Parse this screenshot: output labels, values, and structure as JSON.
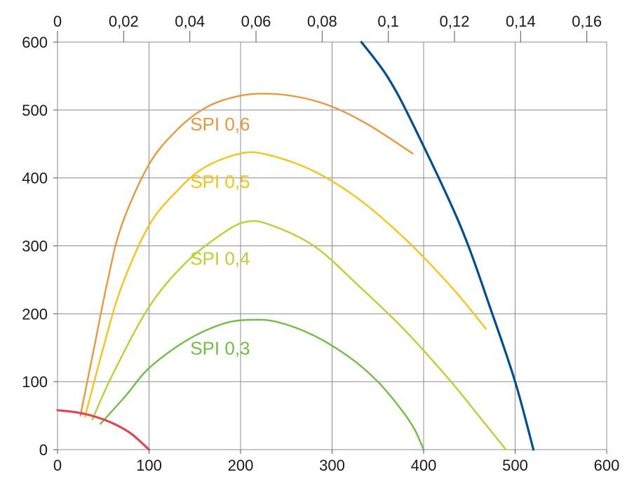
{
  "chart_data": {
    "type": "line",
    "title": "",
    "xlabel": "",
    "ylabel": "",
    "xlim": [
      0,
      600
    ],
    "ylim": [
      0,
      600
    ],
    "x2lim": [
      0,
      0.166
    ],
    "grid": true,
    "x_ticks": [
      "0",
      "100",
      "200",
      "300",
      "400",
      "500",
      "600"
    ],
    "y_ticks": [
      "0",
      "100",
      "200",
      "300",
      "400",
      "500",
      "600"
    ],
    "x2_ticks": [
      "0",
      "0,02",
      "0,04",
      "0,06",
      "0,08",
      "0,1",
      "0,12",
      "0,14",
      "0,16"
    ],
    "series": [
      {
        "name": "SPI 0,6",
        "color": "#E8993F",
        "points": [
          [
            25,
            50
          ],
          [
            40,
            150
          ],
          [
            55,
            250
          ],
          [
            70,
            330
          ],
          [
            100,
            420
          ],
          [
            130,
            470
          ],
          [
            160,
            502
          ],
          [
            190,
            518
          ],
          [
            220,
            524
          ],
          [
            260,
            520
          ],
          [
            300,
            505
          ],
          [
            340,
            478
          ],
          [
            388,
            436
          ]
        ]
      },
      {
        "name": "SPI 0,5",
        "color": "#F5C518",
        "points": [
          [
            30,
            48
          ],
          [
            50,
            150
          ],
          [
            70,
            240
          ],
          [
            100,
            330
          ],
          [
            130,
            380
          ],
          [
            160,
            415
          ],
          [
            200,
            436
          ],
          [
            230,
            434
          ],
          [
            280,
            410
          ],
          [
            330,
            368
          ],
          [
            380,
            310
          ],
          [
            430,
            240
          ],
          [
            468,
            178
          ]
        ]
      },
      {
        "name": "SPI 0,4",
        "color": "#B5D334",
        "points": [
          [
            38,
            44
          ],
          [
            60,
            110
          ],
          [
            100,
            210
          ],
          [
            140,
            275
          ],
          [
            180,
            318
          ],
          [
            205,
            335
          ],
          [
            230,
            332
          ],
          [
            280,
            300
          ],
          [
            330,
            240
          ],
          [
            380,
            175
          ],
          [
            430,
            100
          ],
          [
            460,
            50
          ],
          [
            490,
            0
          ]
        ]
      },
      {
        "name": "SPI 0,3",
        "color": "#72BE44",
        "points": [
          [
            47,
            38
          ],
          [
            75,
            80
          ],
          [
            100,
            120
          ],
          [
            140,
            160
          ],
          [
            180,
            185
          ],
          [
            210,
            191
          ],
          [
            240,
            188
          ],
          [
            280,
            168
          ],
          [
            320,
            135
          ],
          [
            350,
            100
          ],
          [
            375,
            60
          ],
          [
            390,
            30
          ],
          [
            400,
            0
          ]
        ]
      },
      {
        "name": "",
        "color": "#E04656",
        "points": [
          [
            0,
            58
          ],
          [
            20,
            55
          ],
          [
            40,
            49
          ],
          [
            60,
            39
          ],
          [
            80,
            24
          ],
          [
            100,
            0
          ]
        ]
      },
      {
        "name": "",
        "color": "#004F91",
        "points": [
          [
            332,
            600
          ],
          [
            360,
            550
          ],
          [
            388,
            480
          ],
          [
            440,
            330
          ],
          [
            475,
            200
          ],
          [
            500,
            100
          ],
          [
            520,
            0
          ]
        ]
      }
    ],
    "annotations": [
      {
        "text": "SPI 0,6",
        "x": 145,
        "y": 470,
        "color": "#E8993F"
      },
      {
        "text": "SPI 0,5",
        "x": 145,
        "y": 385,
        "color": "#F5C518"
      },
      {
        "text": "SPI 0,4",
        "x": 145,
        "y": 272,
        "color": "#B5D334"
      },
      {
        "text": "SPI 0,3",
        "x": 145,
        "y": 140,
        "color": "#72BE44"
      }
    ]
  }
}
